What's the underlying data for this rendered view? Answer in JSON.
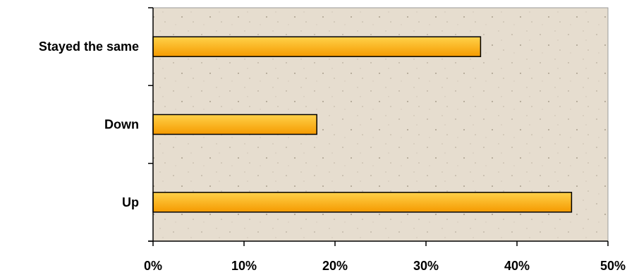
{
  "chart_data": {
    "type": "bar",
    "orientation": "horizontal",
    "categories": [
      "Stayed the same",
      "Down",
      "Up"
    ],
    "values": [
      36,
      18,
      46
    ],
    "value_unit": "%",
    "xlim": [
      0,
      50
    ],
    "x_ticks": [
      "0%",
      "10%",
      "20%",
      "30%",
      "40%",
      "50%"
    ],
    "grid": false,
    "legend": "none"
  },
  "colors": {
    "plot_background": "#e6ddcf",
    "bar_top": "#ffd24a",
    "bar_bottom": "#f59a00",
    "bar_outline": "#000000",
    "axis": "#000000"
  }
}
